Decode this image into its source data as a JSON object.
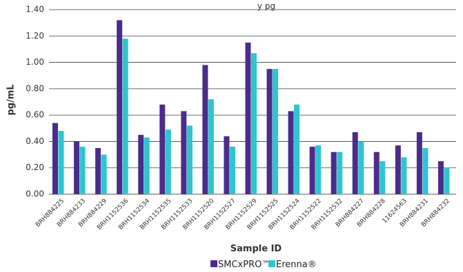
{
  "chart_data": {
    "type": "bar",
    "title_fragment": "y pg",
    "xlabel": "Sample ID",
    "ylabel": "pg/mL",
    "ylim": [
      0,
      1.4
    ],
    "yticks": [
      "0.00",
      "0.20",
      "0.40",
      "0.60",
      "0.80",
      "1.00",
      "1.20",
      "1.40"
    ],
    "grid": true,
    "legend_position": "bottom-center",
    "categories": [
      "BRH884225",
      "BRH884233",
      "BRH884229",
      "BRH1152536",
      "BRH1152534",
      "BRH1152535",
      "BRH1152533",
      "BRH1152520",
      "BRH1152527",
      "BRH1152529",
      "BRH1152525",
      "BRH1152524",
      "BRH1152522",
      "BRH1152532",
      "BRH884227",
      "BRH884228",
      "11624563",
      "BRH884231",
      "BRH884232"
    ],
    "series": [
      {
        "name": "SMCxPRO™",
        "color": "#4a2c8a",
        "values": [
          0.54,
          0.4,
          0.35,
          1.32,
          0.45,
          0.68,
          0.63,
          0.98,
          0.44,
          1.15,
          0.95,
          0.63,
          0.36,
          0.32,
          0.47,
          0.32,
          0.37,
          0.47,
          0.25
        ]
      },
      {
        "name": "Erenna®",
        "color": "#2ec4d0",
        "values": [
          0.48,
          0.36,
          0.3,
          1.18,
          0.43,
          0.49,
          0.52,
          0.72,
          0.36,
          1.07,
          0.95,
          0.68,
          0.37,
          0.32,
          0.4,
          0.25,
          0.28,
          0.35,
          0.2
        ]
      }
    ]
  }
}
